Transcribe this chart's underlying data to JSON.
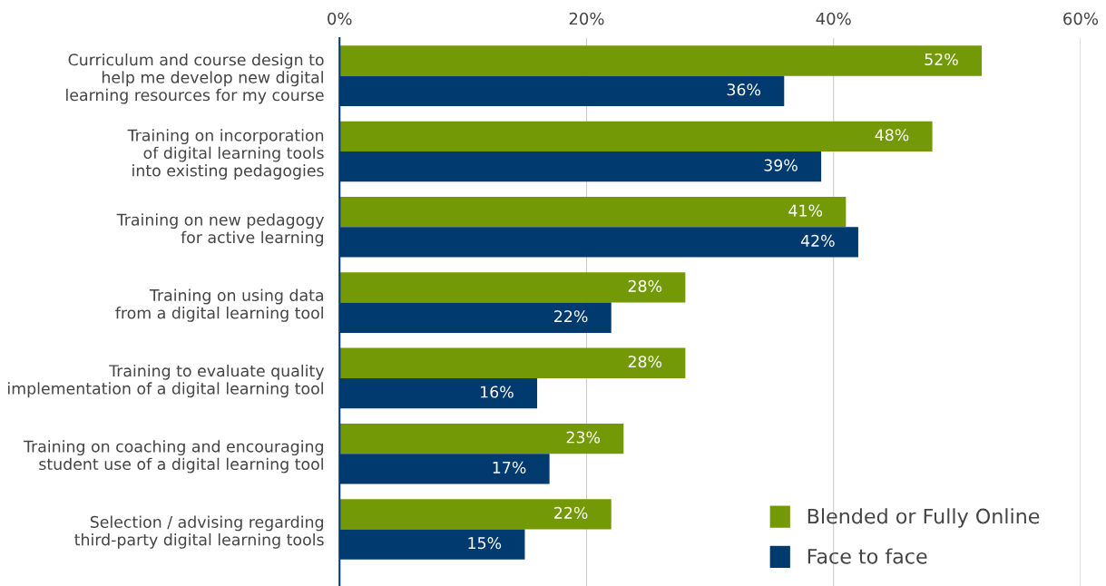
{
  "chart_data": {
    "type": "bar",
    "orientation": "horizontal",
    "categories": [
      "Curriculum and course design to\nhelp me develop new digital\nlearning resources for my course",
      "Training on incorporation\nof digital learning tools\ninto existing pedagogies",
      "Training on new pedagogy\nfor active learning",
      "Training on using data\nfrom a digital learning tool",
      "Training to evaluate quality\nimplementation of a digital learning tool",
      "Training on coaching and encouraging\nstudent use of a digital learning tool",
      "Selection / advising regarding\nthird-party digital learning tools"
    ],
    "series": [
      {
        "name": "Blended or Fully Online",
        "color": "#739a06",
        "values": [
          52,
          48,
          41,
          28,
          28,
          23,
          22
        ],
        "value_labels": [
          "52%",
          "48%",
          "41%",
          "28%",
          "28%",
          "23%",
          "22%"
        ]
      },
      {
        "name": "Face to face",
        "color": "#003a6e",
        "values": [
          36,
          39,
          42,
          22,
          16,
          17,
          15
        ],
        "value_labels": [
          "36%",
          "39%",
          "42%",
          "22%",
          "16%",
          "17%",
          "15%"
        ]
      }
    ],
    "xlim": [
      0,
      60
    ],
    "xticks": [
      {
        "value": 0,
        "label": "0%"
      },
      {
        "value": 20,
        "label": "20%"
      },
      {
        "value": 40,
        "label": "40%"
      },
      {
        "value": 60,
        "label": "60%"
      }
    ],
    "grid": "x",
    "legend": "bottom right"
  }
}
